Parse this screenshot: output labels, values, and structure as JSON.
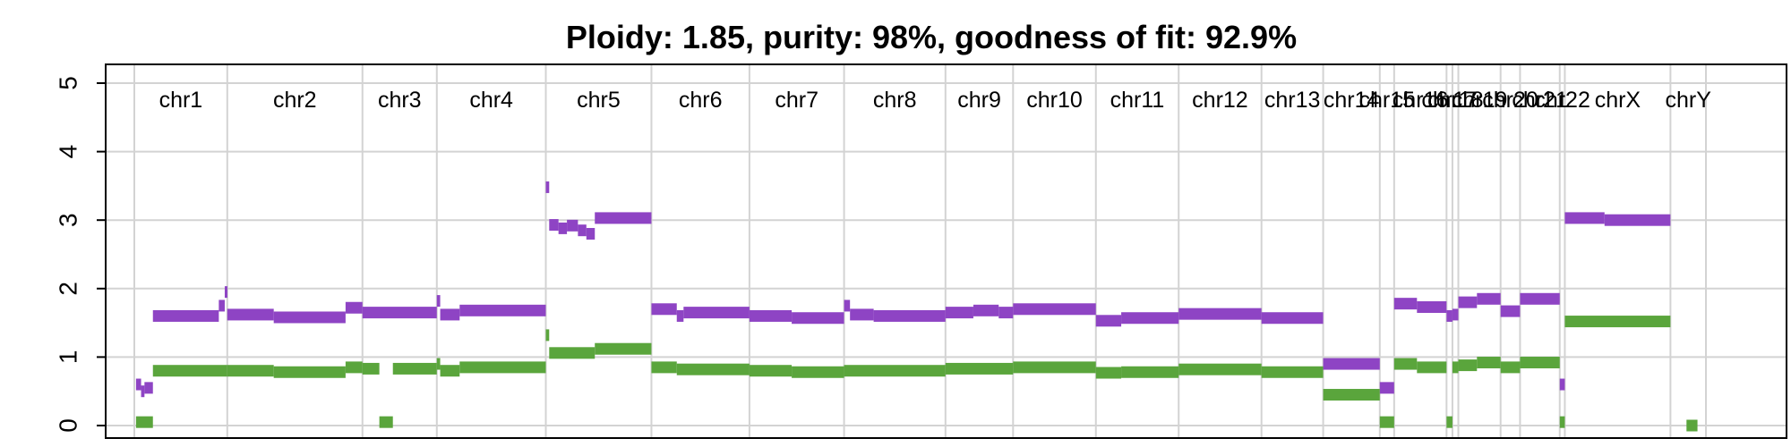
{
  "chart_data": {
    "type": "scatter",
    "title": "Ploidy: 1.85, purity: 98%, goodness of fit: 92.9%",
    "xlabel": "",
    "ylabel": "",
    "ylim": [
      0,
      5
    ],
    "yticks": [
      0,
      1,
      2,
      3,
      4,
      5
    ],
    "grid": true,
    "legend": "none",
    "colors": {
      "total": "#8e44c4",
      "minor": "#5aa53c",
      "grid": "#d3d3d3",
      "axis": "#000000"
    },
    "chromosomes": [
      {
        "name": "chr1",
        "start": 0,
        "end": 110
      },
      {
        "name": "chr2",
        "start": 110,
        "end": 270
      },
      {
        "name": "chr3",
        "start": 270,
        "end": 358
      },
      {
        "name": "chr4",
        "start": 358,
        "end": 487
      },
      {
        "name": "chr5",
        "start": 487,
        "end": 612
      },
      {
        "name": "chr6",
        "start": 612,
        "end": 728
      },
      {
        "name": "chr7",
        "start": 728,
        "end": 840
      },
      {
        "name": "chr8",
        "start": 840,
        "end": 960
      },
      {
        "name": "chr9",
        "start": 960,
        "end": 1040
      },
      {
        "name": "chr10",
        "start": 1040,
        "end": 1138
      },
      {
        "name": "chr11",
        "start": 1138,
        "end": 1236
      },
      {
        "name": "chr12",
        "start": 1236,
        "end": 1334
      },
      {
        "name": "chr13",
        "start": 1334,
        "end": 1407
      },
      {
        "name": "chr14",
        "start": 1407,
        "end": 1474
      },
      {
        "name": "chr15",
        "start": 1474,
        "end": 1491
      },
      {
        "name": "chr16",
        "start": 1491,
        "end": 1553
      },
      {
        "name": "chr17",
        "start": 1553,
        "end": 1560
      },
      {
        "name": "chr18",
        "start": 1560,
        "end": 1567
      },
      {
        "name": "chr19",
        "start": 1567,
        "end": 1617
      },
      {
        "name": "chr20",
        "start": 1617,
        "end": 1640
      },
      {
        "name": "chr21",
        "start": 1640,
        "end": 1687
      },
      {
        "name": "chr22",
        "start": 1687,
        "end": 1693
      },
      {
        "name": "chrX",
        "start": 1693,
        "end": 1818
      },
      {
        "name": "chrY",
        "start": 1818,
        "end": 1860
      }
    ],
    "series": [
      {
        "name": "",
        "segments": [
          [
            2,
            8,
            0.6
          ],
          [
            8,
            12,
            0.5
          ],
          [
            12,
            22,
            0.55
          ],
          [
            22,
            100,
            1.6
          ],
          [
            100,
            107,
            1.75
          ],
          [
            107,
            110,
            1.95
          ],
          [
            110,
            165,
            1.62
          ],
          [
            165,
            250,
            1.58
          ],
          [
            250,
            270,
            1.72
          ],
          [
            270,
            358,
            1.65
          ],
          [
            358,
            362,
            1.82
          ],
          [
            362,
            385,
            1.62
          ],
          [
            385,
            487,
            1.68
          ],
          [
            487,
            491,
            3.48
          ],
          [
            491,
            502,
            2.93
          ],
          [
            502,
            512,
            2.88
          ],
          [
            512,
            525,
            2.92
          ],
          [
            525,
            535,
            2.85
          ],
          [
            535,
            545,
            2.8
          ],
          [
            545,
            612,
            3.03
          ],
          [
            612,
            642,
            1.7
          ],
          [
            642,
            650,
            1.6
          ],
          [
            650,
            728,
            1.65
          ],
          [
            728,
            778,
            1.6
          ],
          [
            778,
            840,
            1.57
          ],
          [
            840,
            847,
            1.75
          ],
          [
            847,
            875,
            1.62
          ],
          [
            875,
            960,
            1.6
          ],
          [
            960,
            993,
            1.65
          ],
          [
            993,
            1023,
            1.68
          ],
          [
            1023,
            1040,
            1.65
          ],
          [
            1040,
            1138,
            1.7
          ],
          [
            1138,
            1168,
            1.53
          ],
          [
            1168,
            1236,
            1.57
          ],
          [
            1236,
            1334,
            1.63
          ],
          [
            1334,
            1407,
            1.57
          ],
          [
            1407,
            1474,
            0.9
          ],
          [
            1474,
            1491,
            0.55
          ],
          [
            1491,
            1518,
            1.78
          ],
          [
            1518,
            1553,
            1.73
          ],
          [
            1553,
            1560,
            1.6
          ],
          [
            1560,
            1567,
            1.62
          ],
          [
            1567,
            1589,
            1.8
          ],
          [
            1589,
            1617,
            1.85
          ],
          [
            1617,
            1640,
            1.67
          ],
          [
            1640,
            1687,
            1.85
          ],
          [
            1687,
            1693,
            0.6
          ],
          [
            1693,
            1740,
            3.03
          ],
          [
            1740,
            1818,
            3.0
          ]
        ]
      },
      {
        "name": "",
        "segments": [
          [
            2,
            22,
            0.05
          ],
          [
            22,
            110,
            0.8
          ],
          [
            110,
            165,
            0.8
          ],
          [
            165,
            250,
            0.78
          ],
          [
            250,
            270,
            0.85
          ],
          [
            270,
            290,
            0.83
          ],
          [
            290,
            306,
            0.05
          ],
          [
            306,
            358,
            0.83
          ],
          [
            358,
            362,
            0.9
          ],
          [
            362,
            385,
            0.8
          ],
          [
            385,
            487,
            0.85
          ],
          [
            487,
            491,
            1.32
          ],
          [
            491,
            545,
            1.06
          ],
          [
            545,
            612,
            1.12
          ],
          [
            612,
            642,
            0.85
          ],
          [
            642,
            728,
            0.82
          ],
          [
            728,
            778,
            0.8
          ],
          [
            778,
            840,
            0.78
          ],
          [
            840,
            960,
            0.8
          ],
          [
            960,
            1040,
            0.83
          ],
          [
            1040,
            1138,
            0.85
          ],
          [
            1138,
            1168,
            0.77
          ],
          [
            1168,
            1236,
            0.78
          ],
          [
            1236,
            1334,
            0.82
          ],
          [
            1334,
            1407,
            0.78
          ],
          [
            1407,
            1474,
            0.45
          ],
          [
            1474,
            1491,
            0.05
          ],
          [
            1491,
            1518,
            0.9
          ],
          [
            1518,
            1553,
            0.85
          ],
          [
            1553,
            1560,
            0.05
          ],
          [
            1560,
            1567,
            0.85
          ],
          [
            1567,
            1589,
            0.88
          ],
          [
            1589,
            1617,
            0.92
          ],
          [
            1617,
            1640,
            0.85
          ],
          [
            1640,
            1687,
            0.92
          ],
          [
            1687,
            1693,
            0.05
          ],
          [
            1693,
            1818,
            1.52
          ],
          [
            1837,
            1850,
            0.0
          ]
        ]
      }
    ]
  }
}
